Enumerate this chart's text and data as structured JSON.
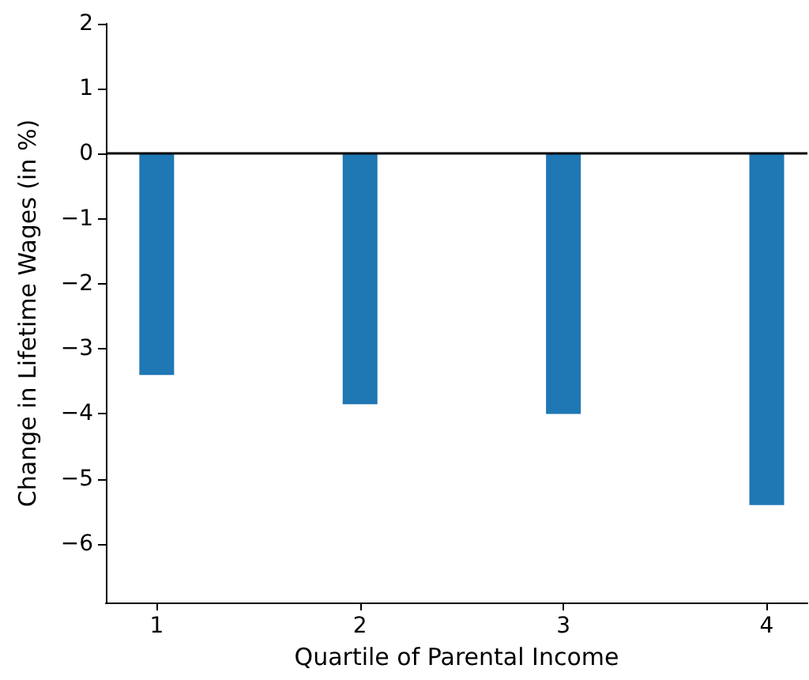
{
  "chart_data": {
    "type": "bar",
    "xlabel": "Quartile of Parental Income",
    "ylabel": "Change in Lifetime Wages (in %)",
    "x": [
      1,
      2,
      3,
      4
    ],
    "series": [
      {
        "color": "#1f77b4",
        "values": [
          -3.4,
          -3.85,
          -4.0,
          -5.4
        ]
      }
    ],
    "xlim": [
      0.75,
      4.2
    ],
    "xticks": [
      1,
      2,
      3,
      4
    ],
    "ylim": [
      -6.9,
      2
    ],
    "yticks": [
      2,
      1,
      0,
      {
        "value": -1,
        "label": "−1"
      },
      {
        "value": -2,
        "label": "−2"
      },
      {
        "value": -3,
        "label": "−3"
      },
      {
        "value": -4,
        "label": "−4"
      },
      {
        "value": -5,
        "label": "−5"
      },
      {
        "value": -6,
        "label": "−6"
      }
    ],
    "ref_lines": [
      {
        "axis": "y",
        "value": 0,
        "color": "#000000"
      }
    ],
    "grid": false
  }
}
